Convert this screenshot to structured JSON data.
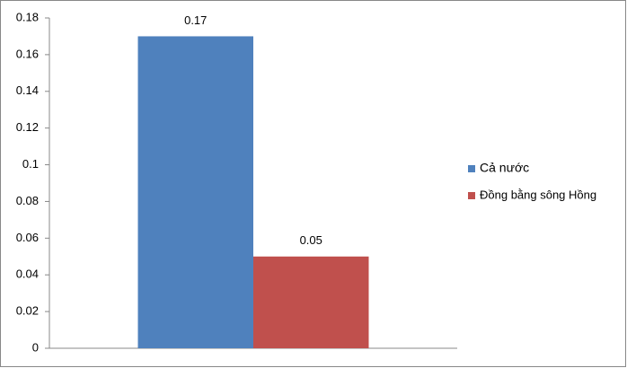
{
  "chart_data": {
    "type": "bar",
    "categories": [
      null
    ],
    "series": [
      {
        "name": "Cả nước",
        "color": "#4f81bd",
        "values": [
          0.17
        ]
      },
      {
        "name": "Đồng bằng sông Hồng",
        "color": "#c0504d",
        "values": [
          0.05
        ]
      }
    ],
    "ylim": [
      0,
      0.18
    ],
    "yticks": [
      0,
      0.02,
      0.04,
      0.06,
      0.08,
      0.1,
      0.12,
      0.14,
      0.16,
      0.18
    ],
    "grid": false,
    "legend": "right"
  }
}
